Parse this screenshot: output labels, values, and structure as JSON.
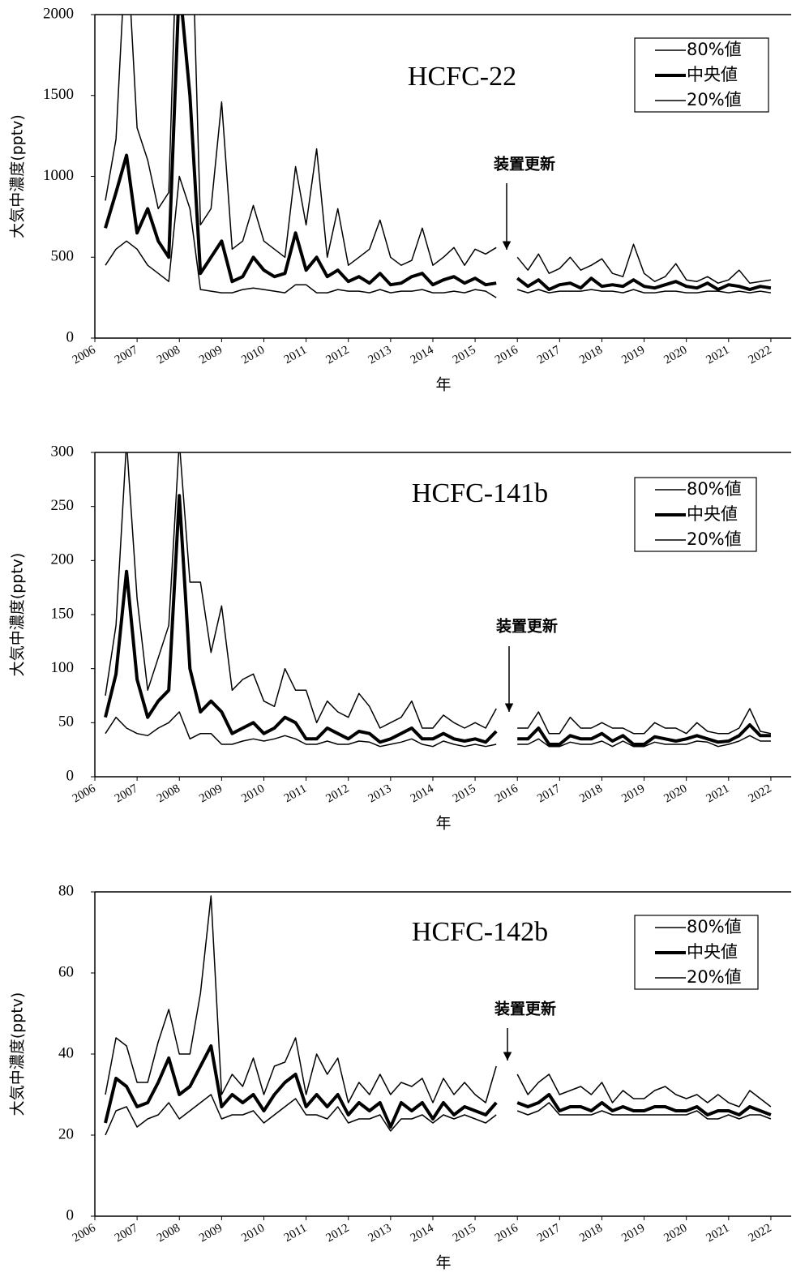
{
  "chart_data": [
    {
      "type": "line",
      "title": "HCFC-22",
      "annotation": "装置更新",
      "x_label": "年",
      "y_label": "大気中濃度(pptv)",
      "x": [
        2006.25,
        2006.5,
        2006.75,
        2007,
        2007.25,
        2007.5,
        2007.75,
        2008,
        2008.25,
        2008.5,
        2008.75,
        2009,
        2009.25,
        2009.5,
        2009.75,
        2010,
        2010.25,
        2010.5,
        2010.75,
        2011,
        2011.25,
        2011.5,
        2011.75,
        2012,
        2012.25,
        2012.5,
        2012.75,
        2013,
        2013.25,
        2013.5,
        2013.75,
        2014,
        2014.25,
        2014.5,
        2014.75,
        2015,
        2015.25,
        2015.5,
        2015.75,
        2016,
        2016.25,
        2016.5,
        2016.75,
        2017,
        2017.25,
        2017.5,
        2017.75,
        2018,
        2018.25,
        2018.5,
        2018.75,
        2019,
        2019.25,
        2019.5,
        2019.75,
        2020,
        2020.25,
        2020.5,
        2020.75,
        2021,
        2021.25,
        2021.5,
        2021.75,
        2022
      ],
      "series": [
        {
          "name": "80%値",
          "color": "#000000",
          "width": 1.5,
          "values": [
            850,
            1230,
            2500,
            1300,
            1100,
            800,
            900,
            3000,
            3000,
            700,
            800,
            1460,
            550,
            600,
            820,
            600,
            550,
            500,
            1060,
            700,
            1170,
            500,
            800,
            450,
            500,
            550,
            730,
            500,
            450,
            480,
            680,
            450,
            500,
            560,
            450,
            550,
            520,
            560,
            null,
            500,
            420,
            520,
            400,
            430,
            500,
            420,
            450,
            490,
            400,
            380,
            580,
            400,
            350,
            380,
            460,
            360,
            350,
            380,
            340,
            360,
            420,
            340,
            350,
            360
          ]
        },
        {
          "name": "中央値",
          "color": "#000000",
          "width": 4,
          "values": [
            680,
            900,
            1130,
            650,
            800,
            600,
            500,
            2200,
            1500,
            400,
            500,
            600,
            350,
            380,
            500,
            420,
            380,
            400,
            650,
            420,
            500,
            380,
            420,
            350,
            380,
            340,
            400,
            330,
            340,
            380,
            400,
            330,
            360,
            380,
            340,
            370,
            330,
            340,
            null,
            370,
            320,
            360,
            300,
            330,
            340,
            310,
            370,
            320,
            330,
            320,
            360,
            320,
            310,
            330,
            350,
            320,
            310,
            340,
            300,
            330,
            320,
            300,
            320,
            310
          ]
        },
        {
          "name": "20%値",
          "color": "#000000",
          "width": 1.5,
          "values": [
            450,
            550,
            600,
            550,
            450,
            400,
            350,
            1000,
            800,
            300,
            290,
            280,
            280,
            300,
            310,
            300,
            290,
            280,
            330,
            330,
            280,
            280,
            300,
            290,
            290,
            280,
            300,
            280,
            290,
            290,
            300,
            280,
            280,
            290,
            280,
            300,
            290,
            250,
            null,
            300,
            280,
            300,
            280,
            290,
            290,
            290,
            300,
            290,
            290,
            280,
            300,
            280,
            280,
            290,
            290,
            280,
            280,
            290,
            290,
            280,
            290,
            280,
            290,
            280
          ]
        }
      ],
      "xlim": [
        2006,
        2022.5
      ],
      "xticks": [
        2006,
        2007,
        2008,
        2009,
        2010,
        2011,
        2012,
        2013,
        2014,
        2015,
        2016,
        2017,
        2018,
        2019,
        2020,
        2021,
        2022
      ],
      "ylim": [
        0,
        2000
      ],
      "yticks": [
        0,
        500,
        1000,
        1500,
        2000
      ],
      "legend": "upper right"
    },
    {
      "type": "line",
      "title": "HCFC-141b",
      "annotation": "装置更新",
      "x_label": "年",
      "y_label": "大気中濃度(pptv)",
      "x": [
        2006.25,
        2006.5,
        2006.75,
        2007,
        2007.25,
        2007.5,
        2007.75,
        2008,
        2008.25,
        2008.5,
        2008.75,
        2009,
        2009.25,
        2009.5,
        2009.75,
        2010,
        2010.25,
        2010.5,
        2010.75,
        2011,
        2011.25,
        2011.5,
        2011.75,
        2012,
        2012.25,
        2012.5,
        2012.75,
        2013,
        2013.25,
        2013.5,
        2013.75,
        2014,
        2014.25,
        2014.5,
        2014.75,
        2015,
        2015.25,
        2015.5,
        2015.75,
        2016,
        2016.25,
        2016.5,
        2016.75,
        2017,
        2017.25,
        2017.5,
        2017.75,
        2018,
        2018.25,
        2018.5,
        2018.75,
        2019,
        2019.25,
        2019.5,
        2019.75,
        2020,
        2020.25,
        2020.5,
        2020.75,
        2021,
        2021.25,
        2021.5,
        2021.75,
        2022
      ],
      "series": [
        {
          "name": "80%値",
          "color": "#000000",
          "width": 1.5,
          "values": [
            75,
            140,
            310,
            165,
            80,
            110,
            140,
            310,
            180,
            180,
            115,
            158,
            80,
            90,
            95,
            70,
            65,
            100,
            80,
            80,
            50,
            70,
            60,
            55,
            77,
            65,
            45,
            50,
            55,
            70,
            45,
            45,
            57,
            50,
            45,
            50,
            45,
            63,
            null,
            45,
            45,
            60,
            40,
            40,
            55,
            45,
            45,
            50,
            45,
            45,
            40,
            40,
            50,
            45,
            45,
            40,
            50,
            42,
            40,
            40,
            45,
            63,
            42,
            40
          ]
        },
        {
          "name": "中央値",
          "color": "#000000",
          "width": 4,
          "values": [
            55,
            95,
            190,
            90,
            55,
            70,
            80,
            260,
            100,
            60,
            70,
            60,
            40,
            45,
            50,
            40,
            45,
            55,
            50,
            35,
            35,
            45,
            40,
            35,
            42,
            40,
            32,
            35,
            40,
            45,
            35,
            35,
            40,
            35,
            33,
            35,
            32,
            42,
            null,
            35,
            35,
            45,
            30,
            30,
            38,
            35,
            35,
            40,
            33,
            38,
            30,
            30,
            37,
            35,
            33,
            35,
            38,
            35,
            32,
            33,
            38,
            48,
            38,
            38
          ]
        },
        {
          "name": "20%値",
          "color": "#000000",
          "width": 1.5,
          "values": [
            40,
            55,
            45,
            40,
            38,
            45,
            50,
            60,
            35,
            40,
            40,
            30,
            30,
            33,
            35,
            33,
            35,
            38,
            35,
            30,
            30,
            33,
            30,
            30,
            33,
            32,
            28,
            30,
            32,
            35,
            30,
            28,
            33,
            30,
            28,
            30,
            28,
            30,
            null,
            30,
            30,
            35,
            28,
            28,
            32,
            30,
            30,
            33,
            28,
            33,
            28,
            28,
            32,
            30,
            30,
            30,
            33,
            32,
            28,
            30,
            33,
            38,
            33,
            33
          ]
        }
      ],
      "xlim": [
        2006,
        2022.5
      ],
      "xticks": [
        2006,
        2007,
        2008,
        2009,
        2010,
        2011,
        2012,
        2013,
        2014,
        2015,
        2016,
        2017,
        2018,
        2019,
        2020,
        2021,
        2022
      ],
      "ylim": [
        0,
        300
      ],
      "yticks": [
        0,
        50,
        100,
        150,
        200,
        250,
        300
      ],
      "legend": "upper right"
    },
    {
      "type": "line",
      "title": "HCFC-142b",
      "annotation": "装置更新",
      "x_label": "年",
      "y_label": "大気中濃度(pptv)",
      "x": [
        2006.25,
        2006.5,
        2006.75,
        2007,
        2007.25,
        2007.5,
        2007.75,
        2008,
        2008.25,
        2008.5,
        2008.75,
        2009,
        2009.25,
        2009.5,
        2009.75,
        2010,
        2010.25,
        2010.5,
        2010.75,
        2011,
        2011.25,
        2011.5,
        2011.75,
        2012,
        2012.25,
        2012.5,
        2012.75,
        2013,
        2013.25,
        2013.5,
        2013.75,
        2014,
        2014.25,
        2014.5,
        2014.75,
        2015,
        2015.25,
        2015.5,
        2015.75,
        2016,
        2016.25,
        2016.5,
        2016.75,
        2017,
        2017.25,
        2017.5,
        2017.75,
        2018,
        2018.25,
        2018.5,
        2018.75,
        2019,
        2019.25,
        2019.5,
        2019.75,
        2020,
        2020.25,
        2020.5,
        2020.75,
        2021,
        2021.25,
        2021.5,
        2021.75,
        2022
      ],
      "series": [
        {
          "name": "80%値",
          "color": "#000000",
          "width": 1.5,
          "values": [
            30,
            44,
            42,
            33,
            33,
            43,
            51,
            40,
            40,
            55,
            79,
            30,
            35,
            32,
            39,
            30,
            37,
            38,
            44,
            30,
            40,
            35,
            39,
            28,
            33,
            30,
            35,
            30,
            33,
            32,
            34,
            28,
            34,
            30,
            33,
            30,
            28,
            37,
            null,
            35,
            30,
            33,
            35,
            30,
            31,
            32,
            30,
            33,
            28,
            31,
            29,
            29,
            31,
            32,
            30,
            29,
            30,
            28,
            30,
            28,
            27,
            31,
            29,
            27
          ]
        },
        {
          "name": "中央値",
          "color": "#000000",
          "width": 4,
          "values": [
            23,
            34,
            32,
            27,
            28,
            33,
            39,
            30,
            32,
            37,
            42,
            27,
            30,
            28,
            30,
            26,
            30,
            33,
            35,
            27,
            30,
            27,
            30,
            25,
            28,
            26,
            28,
            22,
            28,
            26,
            28,
            24,
            28,
            25,
            27,
            26,
            25,
            28,
            null,
            28,
            27,
            28,
            30,
            26,
            27,
            27,
            26,
            28,
            26,
            27,
            26,
            26,
            27,
            27,
            26,
            26,
            27,
            25,
            26,
            26,
            25,
            27,
            26,
            25
          ]
        },
        {
          "name": "20%値",
          "color": "#000000",
          "width": 1.5,
          "values": [
            20,
            26,
            27,
            22,
            24,
            25,
            28,
            24,
            26,
            28,
            30,
            24,
            25,
            25,
            26,
            23,
            25,
            27,
            29,
            25,
            25,
            24,
            27,
            23,
            24,
            24,
            25,
            21,
            24,
            24,
            25,
            23,
            25,
            24,
            25,
            24,
            23,
            25,
            null,
            26,
            25,
            26,
            28,
            25,
            25,
            25,
            25,
            26,
            25,
            25,
            25,
            25,
            25,
            25,
            25,
            25,
            26,
            24,
            24,
            25,
            24,
            25,
            25,
            24
          ]
        }
      ],
      "xlim": [
        2006,
        2022.5
      ],
      "xticks": [
        2006,
        2007,
        2008,
        2009,
        2010,
        2011,
        2012,
        2013,
        2014,
        2015,
        2016,
        2017,
        2018,
        2019,
        2020,
        2021,
        2022
      ],
      "ylim": [
        0,
        80
      ],
      "yticks": [
        0,
        20,
        40,
        60,
        80
      ],
      "legend": "upper right"
    }
  ]
}
